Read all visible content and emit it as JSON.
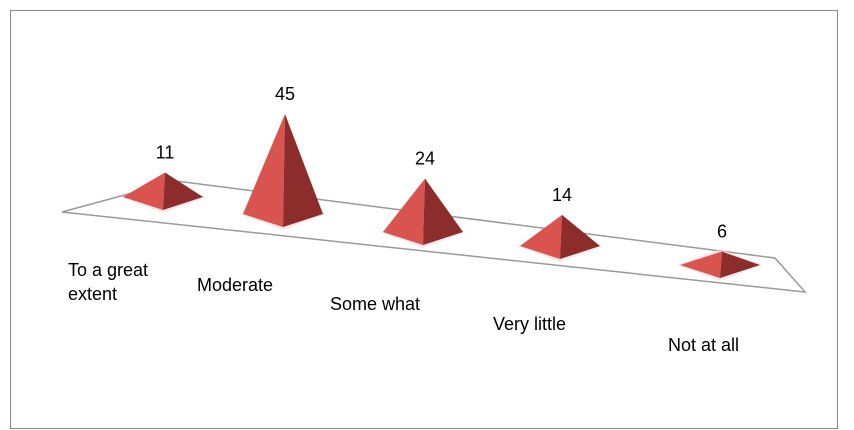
{
  "chart_data": {
    "type": "pyramid",
    "categories": [
      "To a great extent",
      "Moderate",
      "Some what",
      "Very little",
      "Not at all"
    ],
    "values": [
      11,
      45,
      24,
      14,
      6
    ],
    "color": "#d9534f"
  }
}
